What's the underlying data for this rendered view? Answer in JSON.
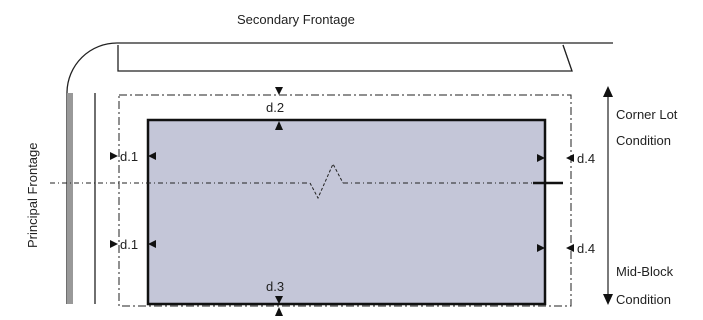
{
  "labels": {
    "secondary_frontage": "Secondary Frontage",
    "principal_frontage": "Principal Frontage",
    "corner_lot": "Corner Lot",
    "corner_lot_condition": "Condition",
    "mid_block": "Mid-Block",
    "mid_block_condition": "Condition"
  },
  "dimensions": {
    "d1_upper": "d.1",
    "d1_lower": "d.1",
    "d2": "d.2",
    "d3": "d.3",
    "d4_upper": "d.4",
    "d4_lower": "d.4"
  },
  "colors": {
    "building_fill": "#c4c6d8",
    "line": "#222222",
    "street_edge": "#999999"
  }
}
